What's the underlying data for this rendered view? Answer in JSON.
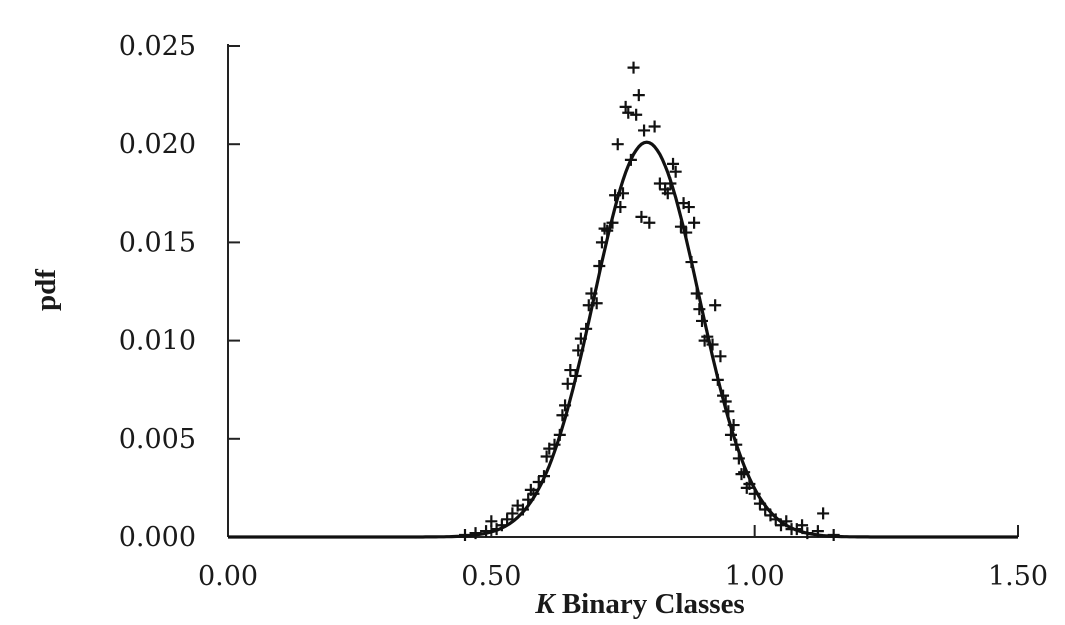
{
  "chart_data": {
    "type": "scatter",
    "title": "",
    "xlabel_var": "K",
    "xlabel_rest": " Binary Classes",
    "ylabel": "pdf",
    "xlim": [
      0.0,
      1.5
    ],
    "ylim": [
      0.0,
      0.025
    ],
    "x_ticks": [
      "0.00",
      "0.50",
      "1.00",
      "1.50"
    ],
    "y_ticks": [
      "0.000",
      "0.005",
      "0.010",
      "0.015",
      "0.020",
      "0.025"
    ],
    "grid": false,
    "legend": "none",
    "fit_curve": {
      "type": "normal",
      "mean": 0.795,
      "sd": 0.1,
      "peak": 0.0201
    },
    "points": [
      [
        0.45,
        0.0001
      ],
      [
        0.47,
        0.0002
      ],
      [
        0.49,
        0.0003
      ],
      [
        0.5,
        0.0008
      ],
      [
        0.51,
        0.0004
      ],
      [
        0.52,
        0.0006
      ],
      [
        0.53,
        0.0009
      ],
      [
        0.54,
        0.0012
      ],
      [
        0.55,
        0.0016
      ],
      [
        0.56,
        0.0014
      ],
      [
        0.57,
        0.0019
      ],
      [
        0.575,
        0.0024
      ],
      [
        0.58,
        0.0022
      ],
      [
        0.59,
        0.0028
      ],
      [
        0.6,
        0.0031
      ],
      [
        0.605,
        0.0041
      ],
      [
        0.61,
        0.0045
      ],
      [
        0.62,
        0.0047
      ],
      [
        0.63,
        0.0052
      ],
      [
        0.635,
        0.0062
      ],
      [
        0.64,
        0.0067
      ],
      [
        0.645,
        0.0078
      ],
      [
        0.65,
        0.0085
      ],
      [
        0.66,
        0.0082
      ],
      [
        0.665,
        0.0095
      ],
      [
        0.67,
        0.0101
      ],
      [
        0.68,
        0.0106
      ],
      [
        0.685,
        0.0118
      ],
      [
        0.69,
        0.0124
      ],
      [
        0.7,
        0.0119
      ],
      [
        0.705,
        0.0138
      ],
      [
        0.71,
        0.015
      ],
      [
        0.715,
        0.0157
      ],
      [
        0.72,
        0.0156
      ],
      [
        0.73,
        0.016
      ],
      [
        0.735,
        0.0174
      ],
      [
        0.74,
        0.02
      ],
      [
        0.745,
        0.0168
      ],
      [
        0.75,
        0.0175
      ],
      [
        0.755,
        0.0219
      ],
      [
        0.76,
        0.0216
      ],
      [
        0.765,
        0.0192
      ],
      [
        0.77,
        0.0239
      ],
      [
        0.775,
        0.0215
      ],
      [
        0.78,
        0.0225
      ],
      [
        0.785,
        0.0163
      ],
      [
        0.79,
        0.0207
      ],
      [
        0.8,
        0.016
      ],
      [
        0.81,
        0.0209
      ],
      [
        0.82,
        0.018
      ],
      [
        0.83,
        0.0177
      ],
      [
        0.835,
        0.0175
      ],
      [
        0.84,
        0.018
      ],
      [
        0.845,
        0.019
      ],
      [
        0.85,
        0.0186
      ],
      [
        0.86,
        0.0158
      ],
      [
        0.865,
        0.017
      ],
      [
        0.87,
        0.0155
      ],
      [
        0.875,
        0.0168
      ],
      [
        0.88,
        0.014
      ],
      [
        0.885,
        0.016
      ],
      [
        0.89,
        0.0124
      ],
      [
        0.895,
        0.0116
      ],
      [
        0.9,
        0.011
      ],
      [
        0.905,
        0.01
      ],
      [
        0.91,
        0.0102
      ],
      [
        0.92,
        0.0098
      ],
      [
        0.925,
        0.0118
      ],
      [
        0.93,
        0.008
      ],
      [
        0.935,
        0.0092
      ],
      [
        0.94,
        0.0072
      ],
      [
        0.945,
        0.0069
      ],
      [
        0.95,
        0.0064
      ],
      [
        0.955,
        0.0052
      ],
      [
        0.96,
        0.0057
      ],
      [
        0.965,
        0.0047
      ],
      [
        0.97,
        0.004
      ],
      [
        0.975,
        0.0032
      ],
      [
        0.98,
        0.0033
      ],
      [
        0.985,
        0.0025
      ],
      [
        0.99,
        0.0027
      ],
      [
        1.0,
        0.0022
      ],
      [
        1.01,
        0.0017
      ],
      [
        1.02,
        0.0014
      ],
      [
        1.03,
        0.0011
      ],
      [
        1.04,
        0.0009
      ],
      [
        1.05,
        0.0006
      ],
      [
        1.06,
        0.0008
      ],
      [
        1.07,
        0.0004
      ],
      [
        1.08,
        0.0004
      ],
      [
        1.09,
        0.0006
      ],
      [
        1.1,
        0.0002
      ],
      [
        1.12,
        0.0003
      ],
      [
        1.13,
        0.0012
      ],
      [
        1.15,
        0.0001
      ]
    ]
  }
}
